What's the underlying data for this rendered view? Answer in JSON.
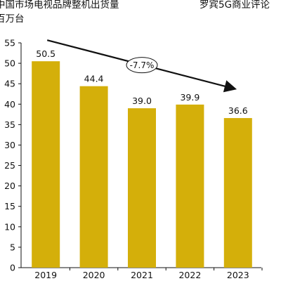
{
  "header": {
    "title_line1": "中国市场电视品牌整机出货量",
    "title_line2": "百万台",
    "brand": "罗宾5G商业评论"
  },
  "chart_data": {
    "type": "bar",
    "title": "中国市场电视品牌整机出货量",
    "ylabel": "百万台",
    "xlabel": "",
    "categories": [
      "2019",
      "2020",
      "2021",
      "2022",
      "2023"
    ],
    "values": [
      50.5,
      44.4,
      39.0,
      39.9,
      36.6
    ],
    "data_labels": [
      "50.5",
      "44.4",
      "39.0",
      "39.9",
      "36.6"
    ],
    "ylim": [
      0,
      55
    ],
    "yticks": [
      0,
      5,
      10,
      15,
      20,
      25,
      30,
      35,
      40,
      45,
      50,
      55
    ],
    "grid": false,
    "bar_color": "#D4AF0A",
    "annotation": {
      "label": "-7.7%",
      "from_category": "2019",
      "to_category": "2023",
      "arrow_color": "#111111"
    }
  }
}
